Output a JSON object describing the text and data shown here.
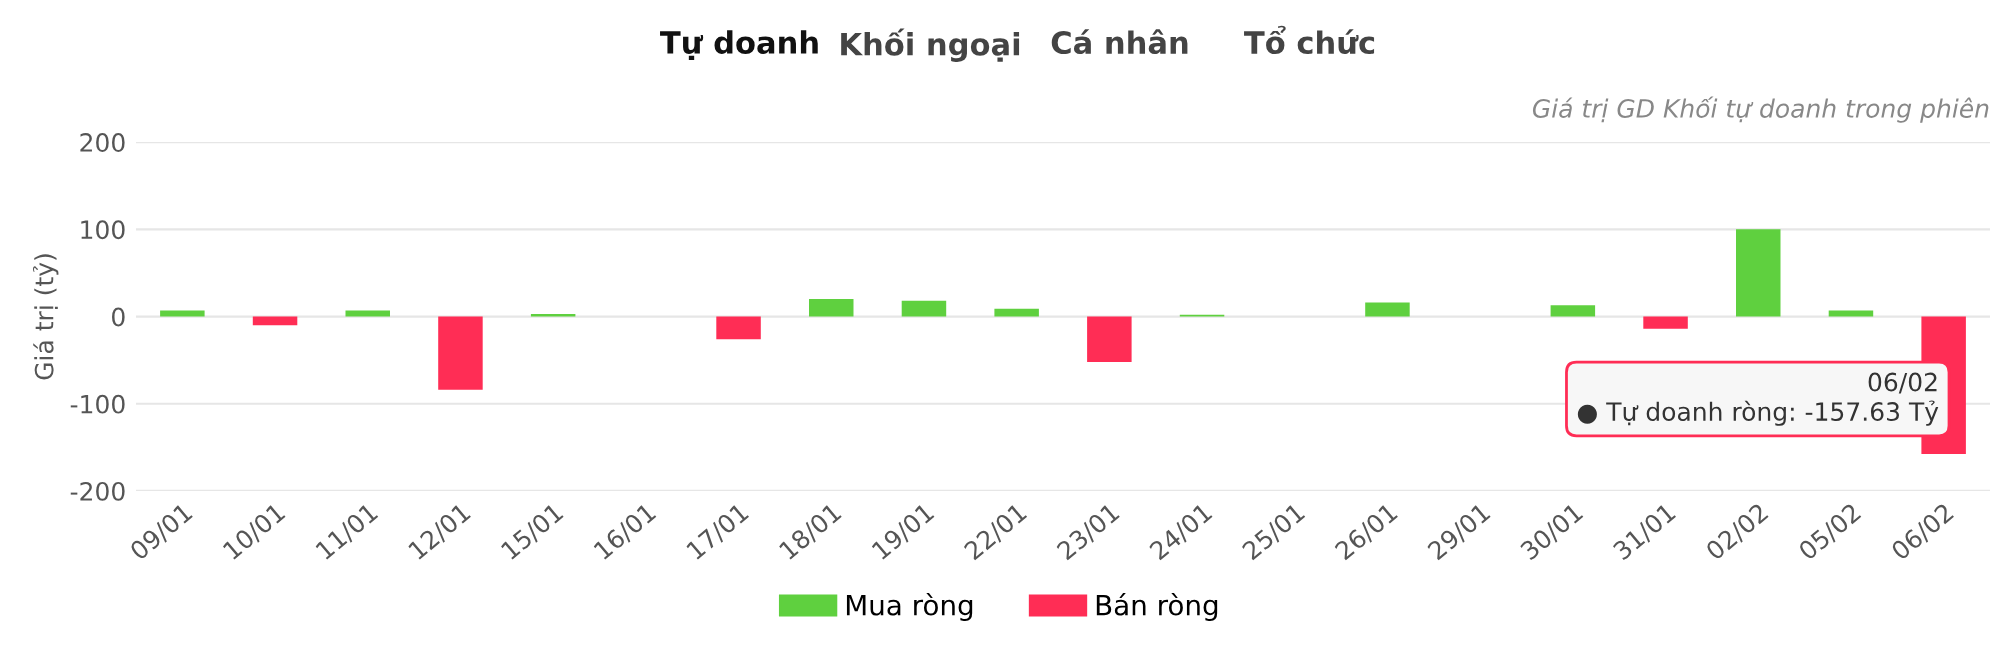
{
  "chart_data": {
    "type": "bar",
    "subtitle": "Giá trị GD Khối tự doanh trong phiên",
    "ylabel": "Giá trị (tỷ)",
    "categories": [
      "09/01",
      "10/01",
      "11/01",
      "12/01",
      "15/01",
      "16/01",
      "17/01",
      "18/01",
      "19/01",
      "22/01",
      "23/01",
      "24/01",
      "25/01",
      "26/01",
      "29/01",
      "30/01",
      "31/01",
      "02/02",
      "05/02",
      "06/02"
    ],
    "series": [
      {
        "name": "Mua ròng",
        "color": "#5fd03f",
        "values": [
          7,
          null,
          7,
          null,
          3,
          0,
          null,
          20,
          18,
          9,
          null,
          2,
          0,
          16,
          0,
          13,
          null,
          100,
          7,
          null
        ]
      },
      {
        "name": "Bán ròng",
        "color": "#ff2d55",
        "values": [
          null,
          -10,
          null,
          -84,
          null,
          null,
          -26,
          null,
          null,
          null,
          -52,
          null,
          null,
          null,
          null,
          null,
          -14,
          null,
          null,
          -157.63
        ]
      }
    ],
    "ylim": [
      -200,
      200
    ],
    "yticks": [
      -200,
      -100,
      0,
      100,
      200
    ],
    "grid": "y",
    "legend": "bottom",
    "annotations": [
      "Tự doanh",
      "Khối ngoại",
      "Cá nhân",
      "Tổ chức",
      {
        "text": "06/02\n● Tự doanh ròng: -157.63 Tỷ",
        "x": "06/02",
        "y": -157.63
      }
    ]
  }
}
